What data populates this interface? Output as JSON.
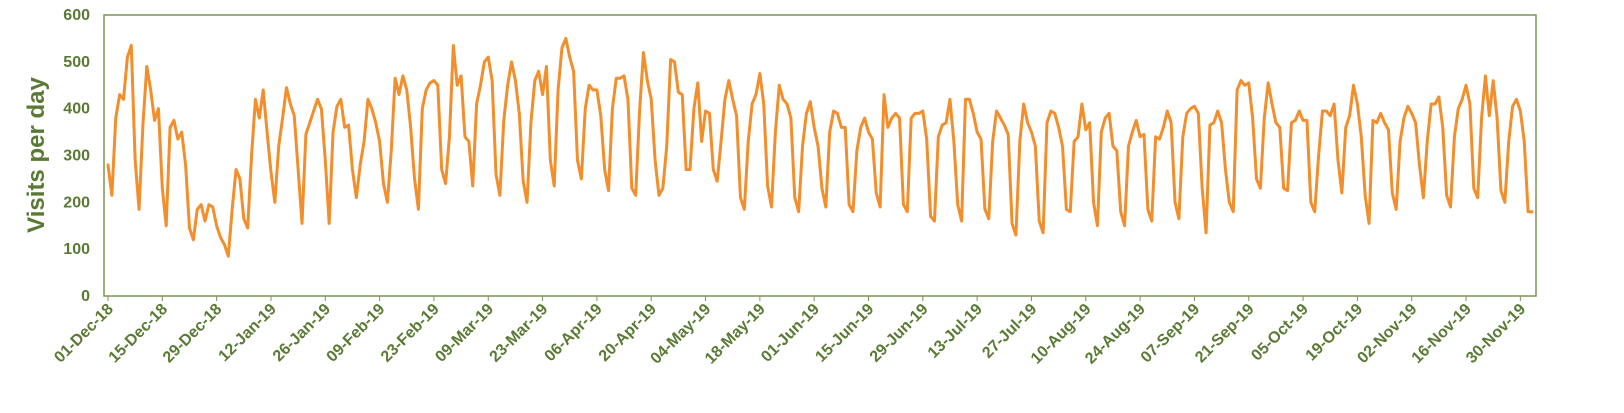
{
  "chart_data": {
    "type": "line",
    "title": "",
    "xlabel": "",
    "ylabel": "Visits per day",
    "ylim": [
      0,
      600
    ],
    "yticks": [
      0,
      100,
      200,
      300,
      400,
      500,
      600
    ],
    "x_start": "01-Dec-18",
    "x_end": "30-Nov-19",
    "xtick_labels": [
      "01-Dec-18",
      "15-Dec-18",
      "29-Dec-18",
      "12-Jan-19",
      "26-Jan-19",
      "09-Feb-19",
      "23-Feb-19",
      "09-Mar-19",
      "23-Mar-19",
      "06-Apr-19",
      "20-Apr-19",
      "04-May-19",
      "18-May-19",
      "01-Jun-19",
      "15-Jun-19",
      "29-Jun-19",
      "13-Jul-19",
      "27-Jul-19",
      "10-Aug-19",
      "24-Aug-19",
      "07-Sep-19",
      "21-Sep-19",
      "05-Oct-19",
      "19-Oct-19",
      "02-Nov-19",
      "16-Nov-19",
      "30-Nov-19"
    ],
    "grid": false,
    "legend": "none",
    "colors": {
      "line": "#f28e2b",
      "axis_text": "#5a7a34",
      "frame": "#7a9454"
    },
    "series": [
      {
        "values": [
          280,
          215,
          380,
          430,
          420,
          510,
          535,
          290,
          185,
          365,
          490,
          440,
          375,
          400,
          230,
          150,
          360,
          375,
          335,
          350,
          280,
          145,
          120,
          185,
          195,
          160,
          195,
          190,
          150,
          125,
          110,
          85,
          185,
          270,
          250,
          165,
          145,
          300,
          420,
          380,
          440,
          350,
          265,
          200,
          320,
          380,
          445,
          410,
          385,
          270,
          155,
          345,
          370,
          395,
          420,
          400,
          290,
          155,
          350,
          405,
          420,
          360,
          365,
          270,
          210,
          280,
          330,
          420,
          400,
          370,
          330,
          240,
          200,
          310,
          465,
          430,
          470,
          440,
          360,
          250,
          185,
          400,
          440,
          455,
          460,
          450,
          270,
          240,
          340,
          535,
          450,
          470,
          340,
          330,
          235,
          410,
          450,
          500,
          510,
          460,
          260,
          215,
          375,
          450,
          500,
          460,
          390,
          245,
          200,
          370,
          460,
          480,
          430,
          490,
          290,
          235,
          440,
          530,
          550,
          510,
          480,
          290,
          250,
          400,
          450,
          440,
          440,
          385,
          270,
          225,
          400,
          465,
          465,
          470,
          420,
          230,
          215,
          395,
          520,
          460,
          420,
          290,
          215,
          230,
          320,
          505,
          500,
          435,
          430,
          270,
          270,
          400,
          455,
          330,
          395,
          390,
          270,
          245,
          330,
          420,
          460,
          420,
          385,
          210,
          185,
          330,
          410,
          430,
          475,
          410,
          235,
          190,
          350,
          450,
          420,
          410,
          380,
          210,
          180,
          320,
          390,
          415,
          360,
          320,
          230,
          190,
          350,
          395,
          390,
          360,
          360,
          195,
          180,
          310,
          360,
          380,
          350,
          335,
          220,
          190,
          430,
          360,
          380,
          390,
          380,
          195,
          180,
          380,
          390,
          390,
          395,
          335,
          170,
          160,
          340,
          365,
          370,
          420,
          330,
          195,
          160,
          420,
          420,
          390,
          350,
          335,
          185,
          165,
          330,
          395,
          380,
          365,
          345,
          155,
          130,
          330,
          410,
          370,
          350,
          320,
          160,
          135,
          370,
          395,
          390,
          360,
          320,
          185,
          180,
          330,
          340,
          410,
          355,
          370,
          200,
          150,
          350,
          380,
          390,
          320,
          310,
          180,
          150,
          320,
          350,
          375,
          340,
          345,
          185,
          160,
          340,
          335,
          360,
          395,
          370,
          200,
          165,
          340,
          390,
          400,
          405,
          390,
          230,
          135,
          365,
          370,
          395,
          370,
          270,
          200,
          180,
          440,
          460,
          450,
          455,
          380,
          250,
          230,
          380,
          455,
          410,
          370,
          360,
          230,
          225,
          370,
          375,
          395,
          375,
          375,
          200,
          180,
          300,
          395,
          395,
          385,
          410,
          290,
          220,
          360,
          385,
          450,
          410,
          340,
          215,
          155,
          375,
          370,
          390,
          370,
          355,
          220,
          185,
          330,
          380,
          405,
          390,
          370,
          280,
          210,
          330,
          410,
          410,
          425,
          360,
          215,
          190,
          340,
          400,
          420,
          450,
          410,
          230,
          210,
          380,
          470,
          385,
          460,
          380,
          225,
          200,
          330,
          405,
          420,
          395,
          330,
          180,
          180
        ]
      }
    ]
  }
}
